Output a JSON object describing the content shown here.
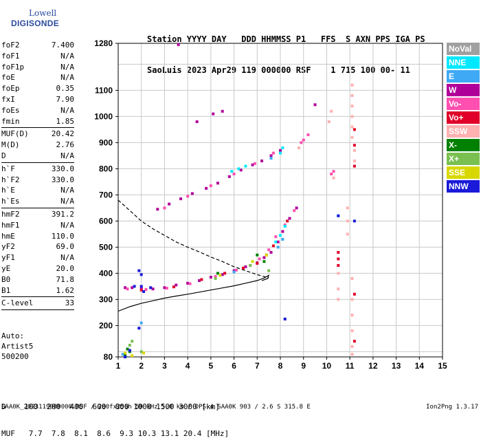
{
  "logo": {
    "line1": "Lowell",
    "line2": "DIGISONDE"
  },
  "header": {
    "line1": "Station YYYY DAY   DDD HHMMSS P1   FFS  S AXN PPS IGA PS",
    "line2": "SaoLuis 2023 Apr29 119 000000 RSF    1 715 100 00- 11"
  },
  "params": {
    "group1": [
      {
        "k": "foF2",
        "v": "7.400"
      },
      {
        "k": "foF1",
        "v": "N/A"
      },
      {
        "k": "foF1p",
        "v": "N/A"
      },
      {
        "k": "foE",
        "v": "N/A"
      },
      {
        "k": "foEp",
        "v": "0.35"
      },
      {
        "k": "fxI",
        "v": "7.90"
      },
      {
        "k": "foEs",
        "v": "N/A"
      },
      {
        "k": "fmin",
        "v": "1.85"
      }
    ],
    "group2": [
      {
        "k": "MUF(D)",
        "v": "20.42"
      },
      {
        "k": "M(D)",
        "v": "2.76"
      },
      {
        "k": "D",
        "v": "N/A"
      }
    ],
    "group3": [
      {
        "k": "h`F",
        "v": "330.0"
      },
      {
        "k": "h`F2",
        "v": "330.0"
      },
      {
        "k": "h`E",
        "v": "N/A"
      },
      {
        "k": "h`Es",
        "v": "N/A"
      }
    ],
    "group4": [
      {
        "k": "hmF2",
        "v": "391.2"
      },
      {
        "k": "hmF1",
        "v": "N/A"
      },
      {
        "k": "hmE",
        "v": "110.0"
      },
      {
        "k": "yF2",
        "v": "69.0"
      },
      {
        "k": "yF1",
        "v": "N/A"
      },
      {
        "k": "yE",
        "v": "20.0"
      },
      {
        "k": "B0",
        "v": "71.8"
      },
      {
        "k": "B1",
        "v": "1.62"
      }
    ],
    "group5": [
      {
        "k": "C-level",
        "v": "33"
      }
    ]
  },
  "auto": {
    "l1": "Auto:",
    "l2": "Artist5",
    "l3": "500200"
  },
  "legend": [
    {
      "label": "NoVal",
      "color": "#a0a0a0"
    },
    {
      "label": "NNE",
      "color": "#00e8ff"
    },
    {
      "label": "E",
      "color": "#3fa9f5"
    },
    {
      "label": "W",
      "color": "#b0009a"
    },
    {
      "label": "Vo-",
      "color": "#ff4fb0"
    },
    {
      "label": "Vo+",
      "color": "#e0002a"
    },
    {
      "label": "SSW",
      "color": "#ffb0b0"
    },
    {
      "label": "X-",
      "color": "#008000"
    },
    {
      "label": "X+",
      "color": "#7ac050"
    },
    {
      "label": "SSE",
      "color": "#d8d800"
    },
    {
      "label": "NNW",
      "color": "#1a1ad8"
    }
  ],
  "dtable": {
    "d_row": "D    100  200  400  600  800 1000 1500 3000 [km]",
    "muf_row": "MUF   7.7  7.8  8.1  8.6  9.3 10.3 13.1 20.4 [MHz]"
  },
  "footer": "SAA0K_2023119000000.RSF / 280fx256h 50 kHz 5.0 km / DPS-4 SAA0K 903 / 2.6 S 315.8 E",
  "version": "Ion2Png 1.3.17",
  "chart_data": {
    "type": "scatter",
    "xlabel": "",
    "ylabel": "",
    "xlim": [
      1,
      15
    ],
    "ylim": [
      80,
      1280
    ],
    "x_ticks": [
      1,
      2,
      3,
      4,
      5,
      6,
      7,
      8,
      9,
      10,
      11,
      12,
      13,
      14,
      15
    ],
    "y_ticks": [
      80,
      200,
      300,
      400,
      500,
      600,
      700,
      800,
      900,
      1000,
      1100,
      1280
    ],
    "grid": true,
    "series": [
      {
        "color": "#b0009a",
        "points": [
          [
            1.3,
            345
          ],
          [
            1.6,
            345
          ],
          [
            2.0,
            342
          ],
          [
            2.5,
            340
          ],
          [
            3.0,
            345
          ],
          [
            3.5,
            355
          ],
          [
            4.0,
            362
          ],
          [
            4.5,
            372
          ],
          [
            5.0,
            385
          ],
          [
            5.5,
            395
          ],
          [
            6.0,
            410
          ],
          [
            6.5,
            425
          ],
          [
            7.0,
            440
          ],
          [
            7.3,
            460
          ],
          [
            7.6,
            480
          ],
          [
            7.9,
            520
          ],
          [
            8.1,
            560
          ],
          [
            8.4,
            610
          ],
          [
            8.7,
            650
          ],
          [
            2.7,
            645
          ],
          [
            3.2,
            665
          ],
          [
            3.7,
            685
          ],
          [
            4.2,
            705
          ],
          [
            4.8,
            725
          ],
          [
            5.3,
            745
          ],
          [
            5.8,
            770
          ],
          [
            6.3,
            795
          ],
          [
            6.8,
            815
          ],
          [
            7.2,
            830
          ],
          [
            7.6,
            850
          ],
          [
            8.0,
            870
          ],
          [
            3.6,
            1275
          ],
          [
            4.4,
            980
          ],
          [
            5.1,
            1010
          ],
          [
            5.5,
            1020
          ],
          [
            9.5,
            1045
          ]
        ]
      },
      {
        "color": "#ff4fb0",
        "points": [
          [
            1.4,
            340
          ],
          [
            2.2,
            338
          ],
          [
            3.1,
            343
          ],
          [
            4.1,
            360
          ],
          [
            5.2,
            388
          ],
          [
            6.1,
            412
          ],
          [
            6.7,
            430
          ],
          [
            7.1,
            455
          ],
          [
            7.5,
            490
          ],
          [
            7.8,
            540
          ],
          [
            8.2,
            585
          ],
          [
            8.6,
            640
          ],
          [
            3.0,
            650
          ],
          [
            4.0,
            695
          ],
          [
            5.0,
            735
          ],
          [
            6.0,
            780
          ],
          [
            6.9,
            820
          ],
          [
            7.7,
            860
          ],
          [
            8.9,
            900
          ],
          [
            9.0,
            910
          ],
          [
            9.2,
            930
          ],
          [
            10.2,
            780
          ],
          [
            10.3,
            790
          ]
        ]
      },
      {
        "color": "#e0002a",
        "points": [
          [
            2.0,
            336
          ],
          [
            3.4,
            348
          ],
          [
            4.6,
            376
          ],
          [
            5.6,
            400
          ],
          [
            6.4,
            420
          ],
          [
            7.0,
            438
          ],
          [
            7.4,
            470
          ],
          [
            7.7,
            505
          ],
          [
            8.3,
            600
          ],
          [
            10.5,
            480
          ],
          [
            10.5,
            455
          ],
          [
            10.5,
            430
          ],
          [
            11.2,
            810
          ],
          [
            11.2,
            890
          ],
          [
            11.2,
            950
          ],
          [
            11.2,
            320
          ],
          [
            11.2,
            140
          ]
        ]
      },
      {
        "color": "#00e8ff",
        "points": [
          [
            7.8,
            520
          ],
          [
            8.0,
            545
          ],
          [
            8.2,
            580
          ],
          [
            8.0,
            860
          ],
          [
            8.1,
            880
          ],
          [
            6.5,
            810
          ],
          [
            5.9,
            790
          ],
          [
            6.2,
            800
          ],
          [
            10.5,
            620
          ]
        ]
      },
      {
        "color": "#3fa9f5",
        "points": [
          [
            7.9,
            500
          ],
          [
            8.1,
            530
          ],
          [
            7.6,
            840
          ],
          [
            1.2,
            90
          ],
          [
            1.3,
            80
          ],
          [
            2.0,
            210
          ],
          [
            6.0,
            405
          ]
        ]
      },
      {
        "color": "#ffb0b0",
        "points": [
          [
            11.1,
            1120
          ],
          [
            11.1,
            1080
          ],
          [
            11.1,
            1040
          ],
          [
            11.1,
            1000
          ],
          [
            11.1,
            960
          ],
          [
            11.1,
            920
          ],
          [
            11.2,
            870
          ],
          [
            11.2,
            830
          ],
          [
            10.9,
            650
          ],
          [
            10.9,
            600
          ],
          [
            10.9,
            550
          ],
          [
            11.1,
            380
          ],
          [
            11.1,
            300
          ],
          [
            11.1,
            240
          ],
          [
            11.1,
            180
          ],
          [
            11.1,
            120
          ],
          [
            11.1,
            90
          ],
          [
            10.5,
            400
          ],
          [
            10.5,
            340
          ],
          [
            10.5,
            300
          ],
          [
            10.2,
            1020
          ],
          [
            10.1,
            980
          ],
          [
            10.3,
            765
          ],
          [
            8.8,
            880
          ]
        ]
      },
      {
        "color": "#008000",
        "points": [
          [
            7.0,
            470
          ],
          [
            7.3,
            445
          ],
          [
            5.3,
            400
          ],
          [
            1.4,
            110
          ],
          [
            1.5,
            100
          ],
          [
            1.3,
            85
          ]
        ]
      },
      {
        "color": "#7ac050",
        "points": [
          [
            5.2,
            380
          ],
          [
            6.7,
            430
          ],
          [
            7.5,
            410
          ],
          [
            1.5,
            125
          ],
          [
            1.6,
            140
          ],
          [
            2.0,
            100
          ]
        ]
      },
      {
        "color": "#d8d800",
        "points": [
          [
            5.4,
            392
          ],
          [
            6.8,
            445
          ],
          [
            7.4,
            470
          ],
          [
            1.3,
            95
          ],
          [
            1.6,
            85
          ],
          [
            2.1,
            95
          ]
        ]
      },
      {
        "color": "#1a1ad8",
        "points": [
          [
            2.0,
            395
          ],
          [
            1.9,
            410
          ],
          [
            2.0,
            350
          ],
          [
            2.4,
            345
          ],
          [
            1.7,
            350
          ],
          [
            2.1,
            330
          ],
          [
            11.2,
            600
          ],
          [
            10.5,
            620
          ],
          [
            8.2,
            225
          ],
          [
            1.5,
            105
          ],
          [
            1.9,
            190
          ],
          [
            1.3,
            80
          ]
        ]
      }
    ],
    "curves": [
      {
        "style": "solid",
        "points": [
          [
            1.0,
            255
          ],
          [
            1.5,
            272
          ],
          [
            2.0,
            285
          ],
          [
            2.5,
            295
          ],
          [
            3.0,
            305
          ],
          [
            3.5,
            313
          ],
          [
            4.0,
            320
          ],
          [
            4.5,
            328
          ],
          [
            5.0,
            336
          ],
          [
            5.5,
            344
          ],
          [
            6.0,
            352
          ],
          [
            6.5,
            362
          ],
          [
            7.0,
            372
          ],
          [
            7.3,
            382
          ],
          [
            7.5,
            392
          ],
          [
            7.45,
            380
          ],
          [
            7.2,
            372
          ]
        ]
      },
      {
        "style": "dashed",
        "points": [
          [
            1.0,
            680
          ],
          [
            1.5,
            640
          ],
          [
            2.0,
            600
          ],
          [
            2.5,
            570
          ],
          [
            3.0,
            545
          ],
          [
            3.5,
            520
          ],
          [
            4.0,
            500
          ],
          [
            4.5,
            482
          ],
          [
            5.0,
            462
          ],
          [
            5.5,
            445
          ],
          [
            6.0,
            425
          ],
          [
            6.5,
            410
          ],
          [
            7.0,
            395
          ],
          [
            7.5,
            382
          ]
        ]
      }
    ]
  }
}
